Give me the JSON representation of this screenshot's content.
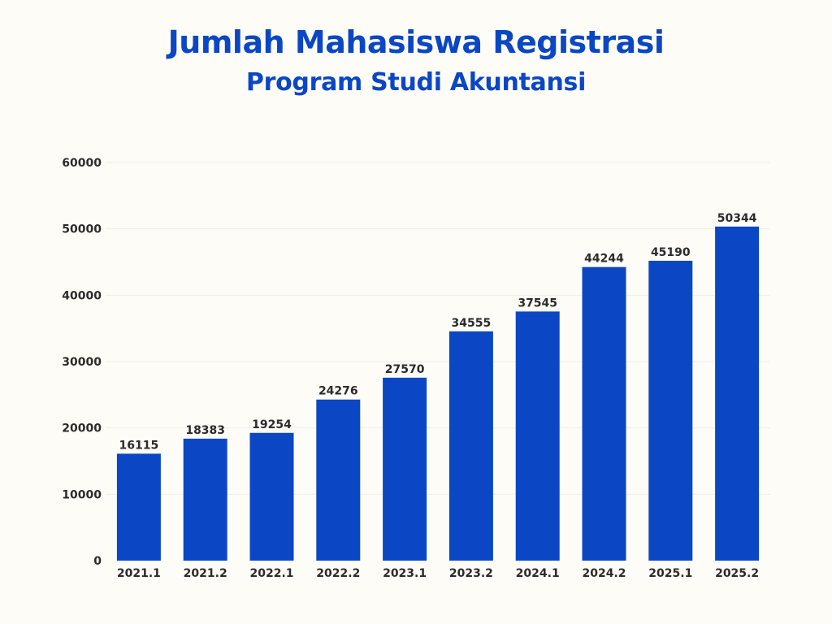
{
  "chart_data": {
    "type": "bar",
    "title": "Jumlah Mahasiswa Registrasi",
    "subtitle": "Program Studi Akuntansi",
    "xlabel": "",
    "ylabel": "",
    "categories": [
      "2021.1",
      "2021.2",
      "2022.1",
      "2022.2",
      "2023.1",
      "2023.2",
      "2024.1",
      "2024.2",
      "2025.1",
      "2025.2"
    ],
    "values": [
      16115,
      18383,
      19254,
      24276,
      27570,
      34555,
      37545,
      44244,
      45190,
      50344
    ],
    "data_labels": [
      "16115",
      "18383",
      "19254",
      "24276",
      "27570",
      "34555",
      "37545",
      "44244",
      "45190",
      "50344"
    ],
    "ylim": [
      0,
      60000
    ],
    "yticks": [
      0,
      10000,
      20000,
      30000,
      40000,
      50000,
      60000
    ],
    "ytick_labels": [
      "0",
      "10000",
      "20000",
      "30000",
      "40000",
      "50000",
      "60000"
    ],
    "grid": true,
    "legend": "none",
    "colors": {
      "bar": "#0b47c4",
      "title": "#0b47c4",
      "text": "#2b2b2b",
      "background": "#fdfcf7"
    }
  }
}
